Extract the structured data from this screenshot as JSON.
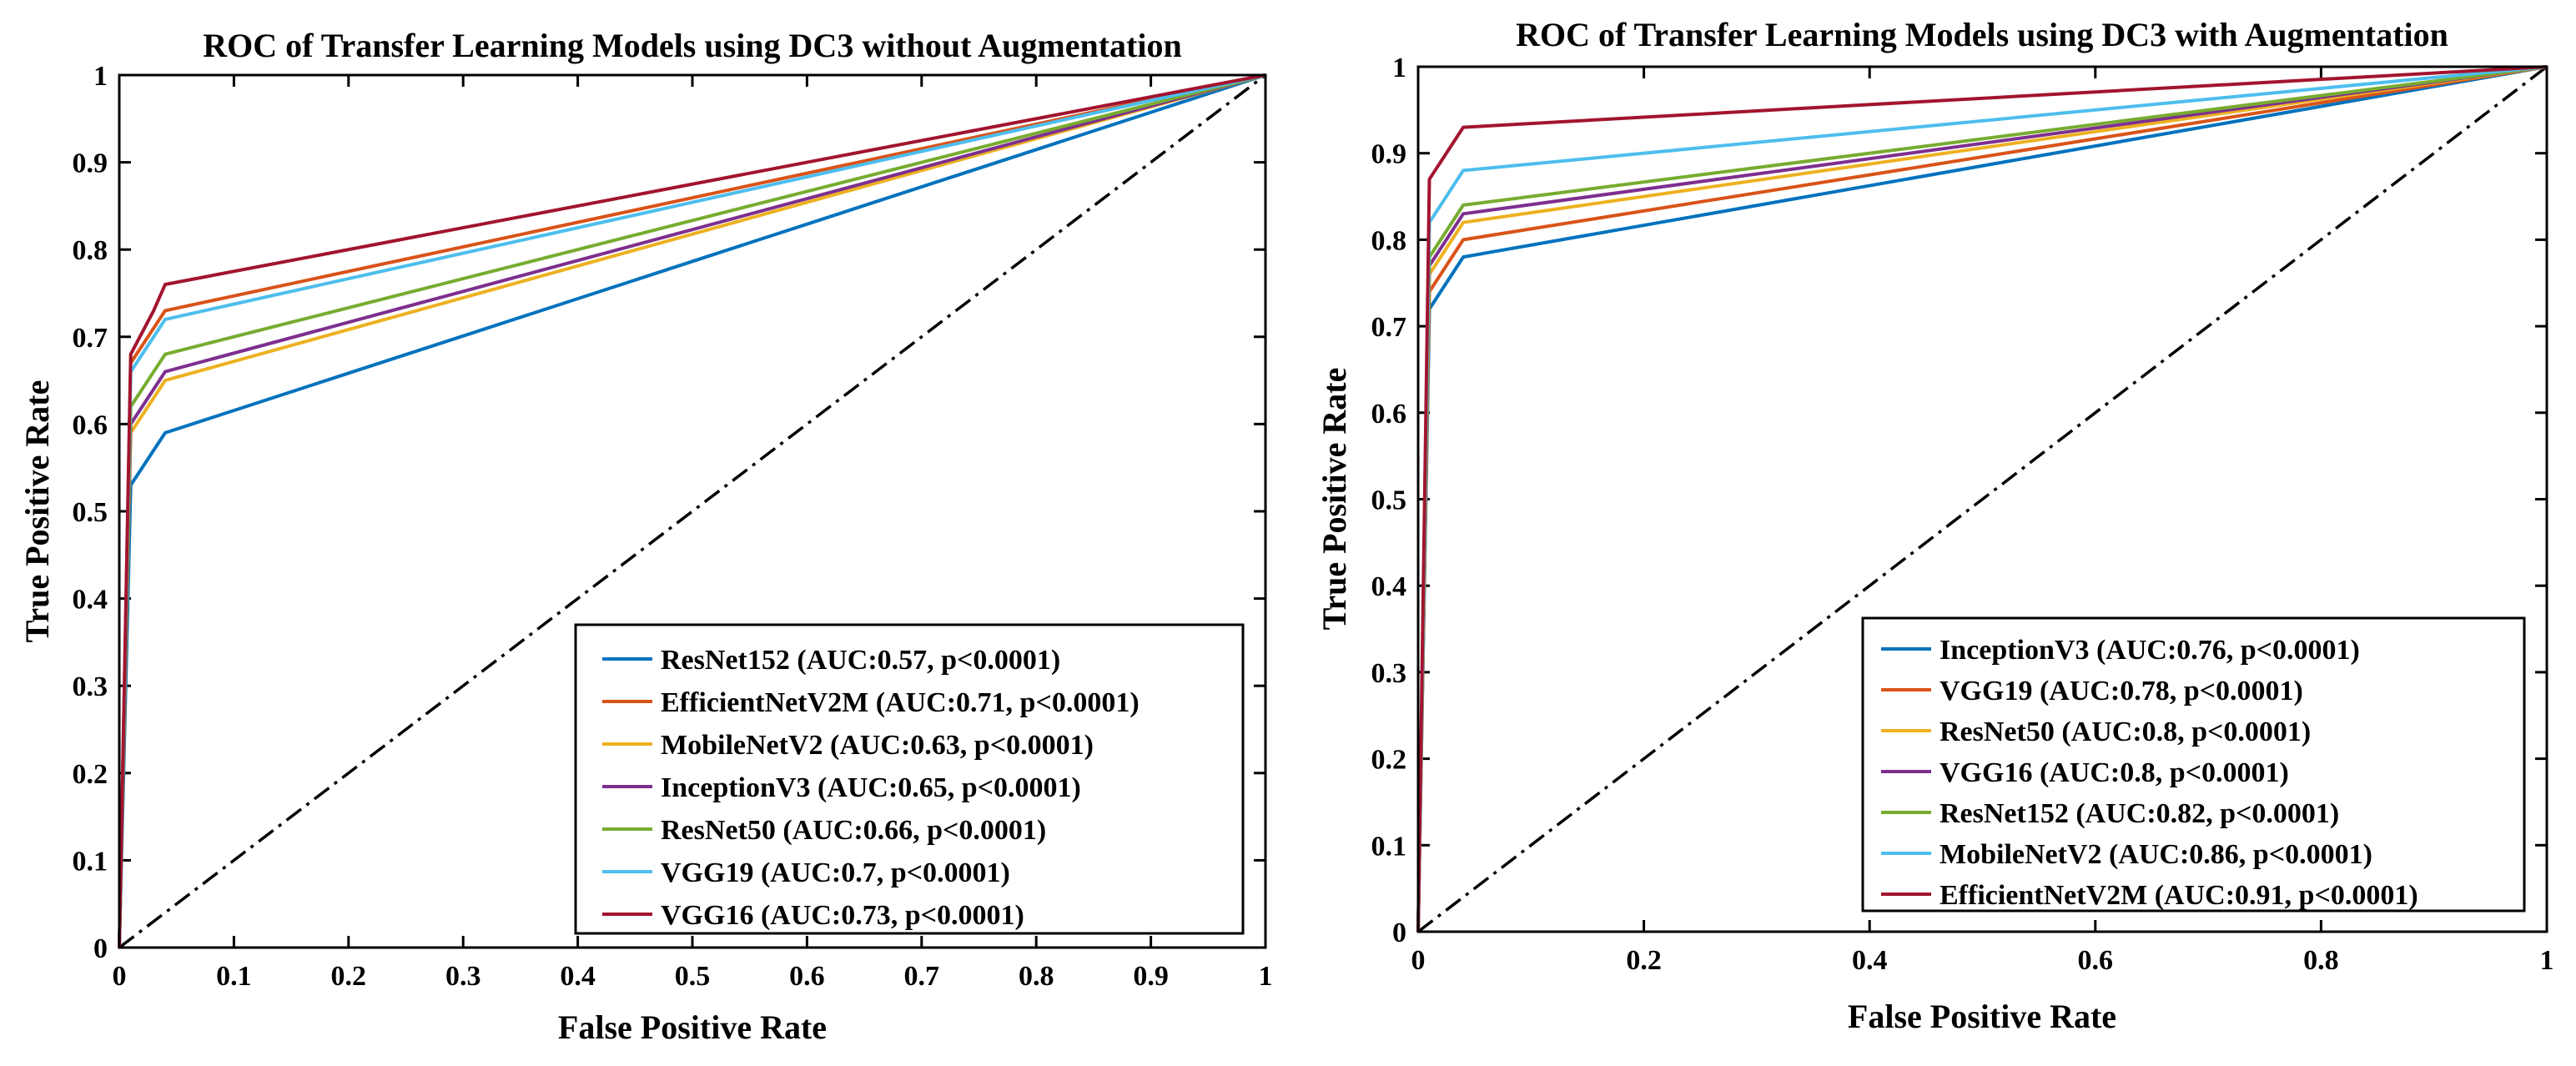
{
  "chart_data": [
    {
      "type": "line",
      "title": "ROC of Transfer Learning Models using DC3 without Augmentation",
      "xlabel": "False Positive Rate",
      "ylabel": "True Positive Rate",
      "xlim": [
        0,
        1
      ],
      "ylim": [
        0,
        1
      ],
      "xticks": [
        0,
        0.1,
        0.2,
        0.3,
        0.4,
        0.5,
        0.6,
        0.7,
        0.8,
        0.9,
        1
      ],
      "xtick_labels": [
        "0",
        "0.1",
        "0.2",
        "0.3",
        "0.4",
        "0.5",
        "0.6",
        "0.7",
        "0.8",
        "0.9",
        "1"
      ],
      "yticks": [
        0,
        0.1,
        0.2,
        0.3,
        0.4,
        0.5,
        0.6,
        0.7,
        0.8,
        0.9,
        1
      ],
      "ytick_labels": [
        "0",
        "0.1",
        "0.2",
        "0.3",
        "0.4",
        "0.5",
        "0.6",
        "0.7",
        "0.8",
        "0.9",
        "1"
      ],
      "legend_position": "bottom-right",
      "series": [
        {
          "name": "ResNet152 (AUC:0.57, p<0.0001)",
          "color": "#0072BD",
          "x": [
            0,
            0.01,
            0.04,
            1
          ],
          "y": [
            0,
            0.53,
            0.59,
            1
          ]
        },
        {
          "name": "EfficientNetV2M (AUC:0.71, p<0.0001)",
          "color": "#D95319",
          "x": [
            0,
            0.01,
            0.04,
            1
          ],
          "y": [
            0,
            0.67,
            0.73,
            1
          ]
        },
        {
          "name": "MobileNetV2 (AUC:0.63, p<0.0001)",
          "color": "#EDB120",
          "x": [
            0,
            0.01,
            0.04,
            1
          ],
          "y": [
            0,
            0.59,
            0.65,
            1
          ]
        },
        {
          "name": "InceptionV3 (AUC:0.65, p<0.0001)",
          "color": "#7E2F8E",
          "x": [
            0,
            0.01,
            0.04,
            1
          ],
          "y": [
            0,
            0.6,
            0.66,
            1
          ]
        },
        {
          "name": "ResNet50 (AUC:0.66, p<0.0001)",
          "color": "#77AC30",
          "x": [
            0,
            0.01,
            0.04,
            1
          ],
          "y": [
            0,
            0.62,
            0.68,
            1
          ]
        },
        {
          "name": "VGG19 (AUC:0.7, p<0.0001)",
          "color": "#4DBEEE",
          "x": [
            0,
            0.01,
            0.04,
            1
          ],
          "y": [
            0,
            0.66,
            0.72,
            1
          ]
        },
        {
          "name": "VGG16 (AUC:0.73, p<0.0001)",
          "color": "#A2142F",
          "x": [
            0,
            0.01,
            0.03,
            0.04,
            1
          ],
          "y": [
            0,
            0.68,
            0.73,
            0.76,
            1
          ]
        }
      ],
      "reference_line": {
        "x": [
          0,
          1
        ],
        "y": [
          0,
          1
        ],
        "style": "dash-dot",
        "color": "#000000"
      }
    },
    {
      "type": "line",
      "title": "ROC of Transfer Learning Models using DC3 with Augmentation",
      "xlabel": "False Positive Rate",
      "ylabel": "True Positive Rate",
      "xlim": [
        0,
        1
      ],
      "ylim": [
        0,
        1
      ],
      "xticks": [
        0,
        0.2,
        0.4,
        0.6,
        0.8,
        1
      ],
      "xtick_labels": [
        "0",
        "0.2",
        "0.4",
        "0.6",
        "0.8",
        "1"
      ],
      "yticks": [
        0,
        0.1,
        0.2,
        0.3,
        0.4,
        0.5,
        0.6,
        0.7,
        0.8,
        0.9,
        1
      ],
      "ytick_labels": [
        "0",
        "0.1",
        "0.2",
        "0.3",
        "0.4",
        "0.5",
        "0.6",
        "0.7",
        "0.8",
        "0.9",
        "1"
      ],
      "legend_position": "bottom-right",
      "series": [
        {
          "name": "InceptionV3 (AUC:0.76, p<0.0001)",
          "color": "#0072BD",
          "x": [
            0,
            0.01,
            0.04,
            1
          ],
          "y": [
            0,
            0.72,
            0.78,
            1
          ]
        },
        {
          "name": "VGG19 (AUC:0.78, p<0.0001)",
          "color": "#D95319",
          "x": [
            0,
            0.01,
            0.04,
            1
          ],
          "y": [
            0,
            0.74,
            0.8,
            1
          ]
        },
        {
          "name": "ResNet50 (AUC:0.8, p<0.0001)",
          "color": "#EDB120",
          "x": [
            0,
            0.01,
            0.04,
            1
          ],
          "y": [
            0,
            0.76,
            0.82,
            1
          ]
        },
        {
          "name": "VGG16 (AUC:0.8, p<0.0001)",
          "color": "#7E2F8E",
          "x": [
            0,
            0.01,
            0.04,
            1
          ],
          "y": [
            0,
            0.77,
            0.83,
            1
          ]
        },
        {
          "name": "ResNet152 (AUC:0.82, p<0.0001)",
          "color": "#77AC30",
          "x": [
            0,
            0.01,
            0.04,
            1
          ],
          "y": [
            0,
            0.78,
            0.84,
            1
          ]
        },
        {
          "name": "MobileNetV2 (AUC:0.86, p<0.0001)",
          "color": "#4DBEEE",
          "x": [
            0,
            0.01,
            0.04,
            1
          ],
          "y": [
            0,
            0.82,
            0.88,
            1
          ]
        },
        {
          "name": "EfficientNetV2M (AUC:0.91, p<0.0001)",
          "color": "#A2142F",
          "x": [
            0,
            0.01,
            0.04,
            1
          ],
          "y": [
            0,
            0.87,
            0.93,
            1
          ]
        }
      ],
      "reference_line": {
        "x": [
          0,
          1
        ],
        "y": [
          0,
          1
        ],
        "style": "dash-dot",
        "color": "#000000"
      }
    }
  ]
}
